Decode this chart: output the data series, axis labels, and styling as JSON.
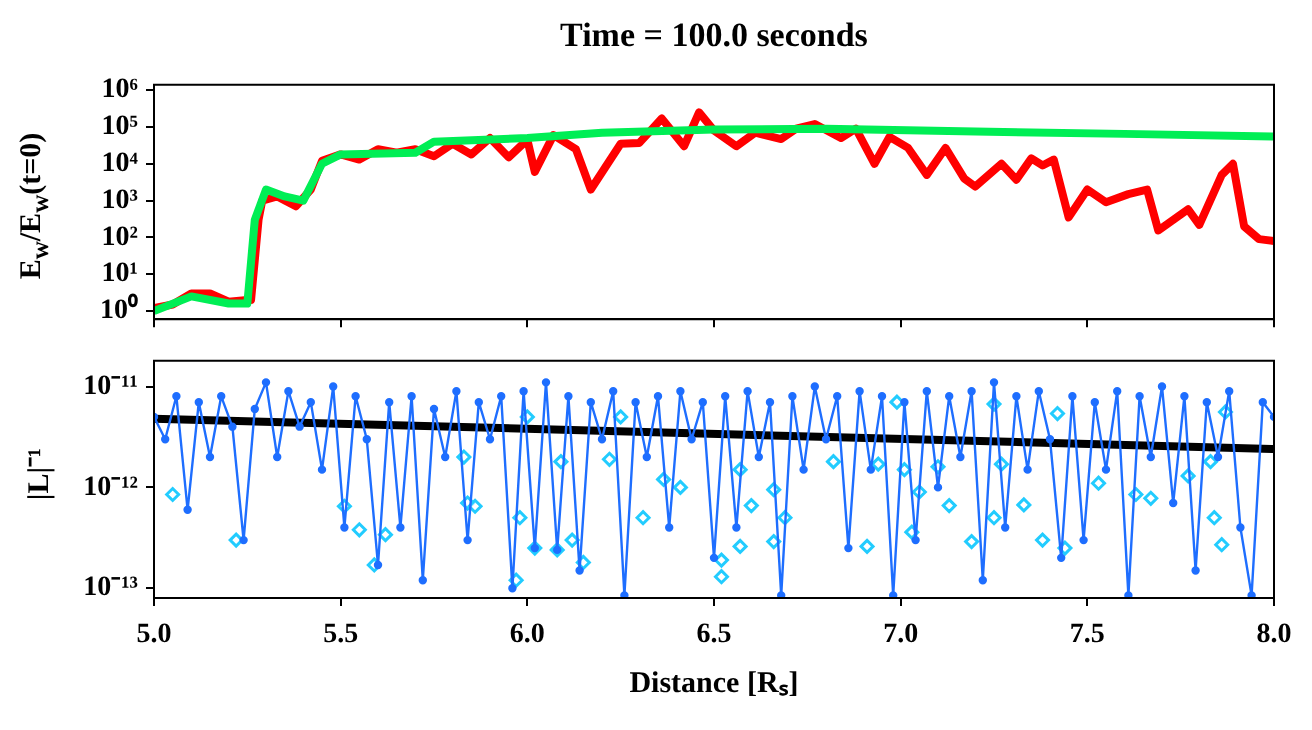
{
  "chart_data": [
    {
      "type": "line",
      "title": "Time = 100.0 seconds",
      "ylabel": "E$_{w}$/E$_{w}$(t=0)",
      "log": "y",
      "tick_labels": "y",
      "xlim": [
        5,
        8
      ],
      "xticks": [
        5,
        5.5,
        6,
        6.5,
        7,
        7.5,
        8
      ],
      "ylim": [
        0.6,
        1400000
      ],
      "yticks": [
        {
          "value": 1,
          "label": "10⁰"
        },
        {
          "value": 10,
          "label": "10¹"
        },
        {
          "value": 100,
          "label": "10²"
        },
        {
          "value": 1000,
          "label": "10³"
        },
        {
          "value": 10000,
          "label": "10⁴"
        },
        {
          "value": 100000,
          "label": "10⁵"
        },
        {
          "value": 1000000,
          "label": "10⁶"
        }
      ],
      "series": [
        {
          "color": "#00ee55",
          "marker": "none",
          "x": [
            5.0,
            5.1,
            5.2,
            5.25,
            5.27,
            5.3,
            5.35,
            5.4,
            5.45,
            5.5,
            5.7,
            5.75,
            6.0,
            6.2,
            6.5,
            6.8,
            7.2,
            7.6,
            8.0
          ],
          "values": [
            1,
            2.5,
            1.6,
            1.6,
            300,
            2000,
            1300,
            1000,
            10000,
            18000,
            20000,
            40000,
            50000,
            70000,
            85000,
            90000,
            75000,
            65000,
            55000
          ]
        },
        {
          "color": "#ff0000",
          "marker": "none",
          "x": [
            5.0,
            5.05,
            5.1,
            5.15,
            5.2,
            5.25,
            5.26,
            5.28,
            5.29,
            5.33,
            5.38,
            5.42,
            5.45,
            5.5,
            5.55,
            5.6,
            5.65,
            5.7,
            5.75,
            5.8,
            5.85,
            5.9,
            5.95,
            6.0,
            6.02,
            6.07,
            6.13,
            6.17,
            6.25,
            6.3,
            6.36,
            6.42,
            6.46,
            6.5,
            6.56,
            6.61,
            6.68,
            6.72,
            6.77,
            6.84,
            6.88,
            6.93,
            6.97,
            7.02,
            7.07,
            7.12,
            7.17,
            7.2,
            7.27,
            7.31,
            7.35,
            7.38,
            7.41,
            7.45,
            7.5,
            7.55,
            7.61,
            7.66,
            7.69,
            7.77,
            7.8,
            7.86,
            7.89,
            7.92,
            7.96,
            8.0
          ],
          "values": [
            1.2,
            1.5,
            3,
            3,
            1.8,
            2,
            2,
            300,
            1000,
            1300,
            700,
            2000,
            12000,
            18000,
            13000,
            25000,
            20000,
            25000,
            16000,
            35000,
            18000,
            50000,
            15000,
            45000,
            6000,
            60000,
            25000,
            2000,
            35000,
            37000,
            170000,
            30000,
            250000,
            80000,
            30000,
            70000,
            47000,
            90000,
            120000,
            50000,
            90000,
            10000,
            54000,
            27000,
            5000,
            27000,
            4000,
            2400,
            10000,
            3700,
            14000,
            9000,
            13000,
            350,
            2000,
            900,
            1500,
            2000,
            155,
            580,
            220,
            5000,
            10000,
            200,
            90,
            80
          ]
        }
      ]
    },
    {
      "type": "line",
      "xlabel": "Distance [Rₛ]",
      "ylabel": "|L|⁻¹",
      "log": "y",
      "xlim": [
        5,
        8
      ],
      "xticks": [
        {
          "value": 5,
          "label": "5.0"
        },
        {
          "value": 5.5,
          "label": "5.5"
        },
        {
          "value": 6,
          "label": "6.0"
        },
        {
          "value": 6.5,
          "label": "6.5"
        },
        {
          "value": 7,
          "label": "7.0"
        },
        {
          "value": 7.5,
          "label": "7.5"
        },
        {
          "value": 8,
          "label": "8.0"
        }
      ],
      "ylim": [
        8e-14,
        1.8e-11
      ],
      "yticks": [
        {
          "value": 1e-13,
          "label": "10⁻¹³"
        },
        {
          "value": 1e-12,
          "label": "10⁻¹²"
        },
        {
          "value": 1e-11,
          "label": "10⁻¹¹"
        }
      ],
      "series": [
        {
          "color": "#1e6eff",
          "marker": "circle",
          "x": [
            5.0,
            5.03,
            5.06,
            5.09,
            5.12,
            5.15,
            5.18,
            5.21,
            5.24,
            5.27,
            5.3,
            5.33,
            5.36,
            5.39,
            5.42,
            5.45,
            5.48,
            5.51,
            5.54,
            5.57,
            5.6,
            5.63,
            5.66,
            5.69,
            5.72,
            5.75,
            5.78,
            5.81,
            5.84,
            5.87,
            5.9,
            5.93,
            5.96,
            5.99,
            6.02,
            6.05,
            6.08,
            6.11,
            6.14,
            6.17,
            6.2,
            6.23,
            6.26,
            6.29,
            6.32,
            6.35,
            6.38,
            6.41,
            6.44,
            6.47,
            6.5,
            6.53,
            6.56,
            6.59,
            6.62,
            6.65,
            6.68,
            6.71,
            6.74,
            6.77,
            6.8,
            6.83,
            6.86,
            6.89,
            6.92,
            6.95,
            6.98,
            7.01,
            7.04,
            7.07,
            7.1,
            7.13,
            7.16,
            7.19,
            7.22,
            7.25,
            7.28,
            7.31,
            7.34,
            7.37,
            7.4,
            7.43,
            7.46,
            7.49,
            7.52,
            7.55,
            7.58,
            7.61,
            7.64,
            7.67,
            7.7,
            7.73,
            7.76,
            7.79,
            7.82,
            7.85,
            7.88,
            7.91,
            7.94,
            7.97,
            8.0
          ],
          "values": [
            5e-12,
            3e-12,
            8e-12,
            6e-13,
            7e-12,
            2e-12,
            8e-12,
            4e-12,
            3e-13,
            6e-12,
            1.1e-11,
            2e-12,
            9e-12,
            4e-12,
            7e-12,
            1.5e-12,
            1e-11,
            4e-13,
            8e-12,
            3e-12,
            1.7e-13,
            7e-12,
            4e-13,
            8e-12,
            1.2e-13,
            6e-12,
            2e-12,
            9e-12,
            3e-13,
            7e-12,
            3e-12,
            8e-12,
            1e-13,
            9e-12,
            2.5e-13,
            1.1e-11,
            2.4e-13,
            8e-12,
            1.5e-13,
            7e-12,
            3e-12,
            9e-12,
            8.5e-14,
            7e-12,
            2e-12,
            8e-12,
            4e-13,
            9e-12,
            3e-12,
            7e-12,
            2e-13,
            8e-12,
            4e-13,
            9e-12,
            2e-12,
            7e-12,
            8.5e-14,
            8e-12,
            1.5e-12,
            1e-11,
            3e-12,
            8e-12,
            2.5e-13,
            9e-12,
            1.5e-12,
            8e-12,
            8.5e-14,
            7e-12,
            3e-13,
            9e-12,
            1e-12,
            8e-12,
            2e-12,
            9e-12,
            1.2e-13,
            1.1e-11,
            4e-13,
            8e-12,
            1.5e-12,
            9e-12,
            3e-12,
            2e-13,
            8e-12,
            3e-13,
            7e-12,
            1.5e-12,
            9e-12,
            8.5e-14,
            8e-12,
            2e-12,
            1e-11,
            7e-13,
            8e-12,
            1.5e-13,
            7e-12,
            2e-12,
            9e-12,
            4e-13,
            8.5e-14,
            7e-12,
            5e-12
          ]
        },
        {
          "type": "scatter",
          "color": "#22ccff",
          "marker": "diamond",
          "x": [
            5.05,
            5.22,
            5.51,
            5.55,
            5.59,
            5.62,
            5.83,
            5.84,
            5.86,
            5.97,
            5.98,
            6.0,
            6.02,
            6.08,
            6.09,
            6.12,
            6.15,
            6.22,
            6.25,
            6.31,
            6.365,
            6.41,
            6.52,
            6.52,
            6.57,
            6.57,
            6.6,
            6.66,
            6.66,
            6.69,
            6.82,
            6.91,
            6.94,
            6.99,
            7.01,
            7.03,
            7.05,
            7.1,
            7.13,
            7.19,
            7.25,
            7.25,
            7.27,
            7.33,
            7.38,
            7.42,
            7.44,
            7.53,
            7.63,
            7.67,
            7.77,
            7.83,
            7.84,
            7.86,
            7.87
          ],
          "values": [
            8.5e-13,
            3e-13,
            6.5e-13,
            3.8e-13,
            1.7e-13,
            3.4e-13,
            2e-12,
            7e-13,
            6.5e-13,
            1.2e-13,
            5e-13,
            5e-12,
            2.5e-13,
            2.4e-13,
            1.8e-12,
            3e-13,
            1.8e-13,
            1.9e-12,
            5e-12,
            5e-13,
            1.2e-12,
            1e-12,
            1.9e-13,
            1.3e-13,
            1.5e-12,
            2.6e-13,
            6.6e-13,
            9.5e-13,
            2.9e-13,
            5e-13,
            1.8e-12,
            2.6e-13,
            1.7e-12,
            7e-12,
            1.5e-12,
            3.6e-13,
            9e-13,
            1.6e-12,
            6.6e-13,
            2.9e-13,
            5e-13,
            6.7e-12,
            1.7e-12,
            6.7e-13,
            3e-13,
            5.4e-12,
            2.5e-13,
            1.1e-12,
            8.5e-13,
            7.8e-13,
            1.3e-12,
            1.8e-12,
            5e-13,
            2.7e-13,
            5.6e-12
          ]
        },
        {
          "color": "#000000",
          "marker": "none",
          "x": [
            5,
            8
          ],
          "values": [
            4.8e-12,
            2.4e-12
          ]
        }
      ]
    }
  ]
}
